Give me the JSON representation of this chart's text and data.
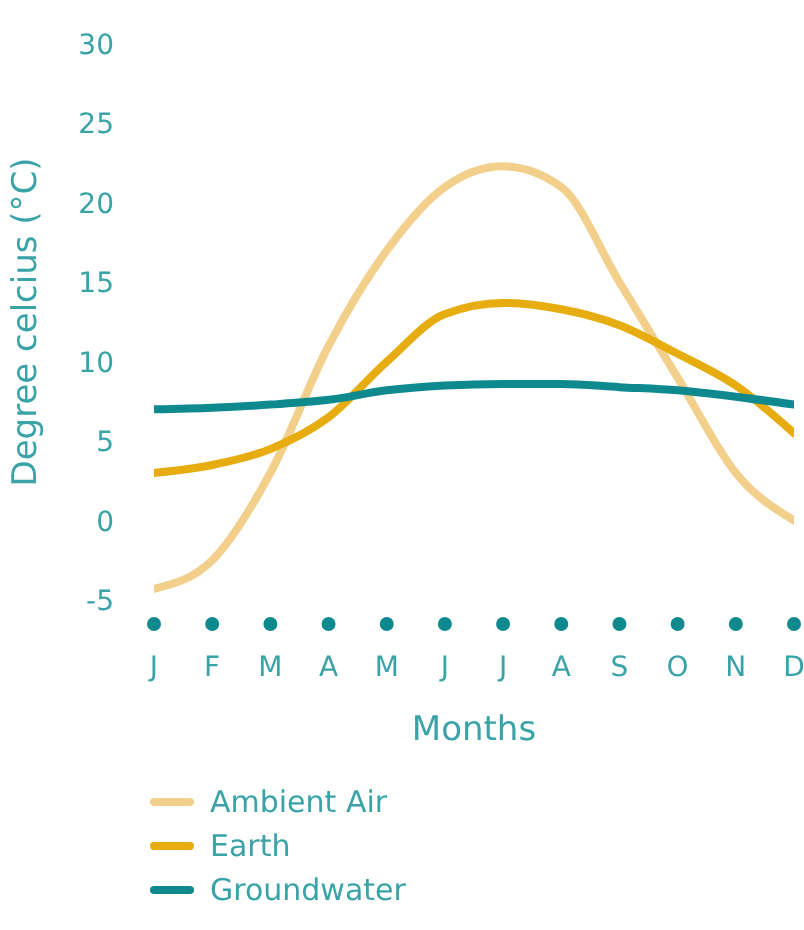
{
  "chart_data": {
    "type": "line",
    "xlabel": "Months",
    "ylabel": "Degree celcius (°C)",
    "categories": [
      "J",
      "F",
      "M",
      "A",
      "M",
      "J",
      "J",
      "A",
      "S",
      "O",
      "N",
      "D"
    ],
    "series": [
      {
        "name": "Ambient Air",
        "color": "#f2cf8a",
        "values": [
          -4.3,
          -2.5,
          3,
          11,
          17,
          21,
          22.3,
          21,
          15,
          9,
          3,
          0
        ]
      },
      {
        "name": "Earth",
        "color": "#e6ac10",
        "values": [
          3,
          3.5,
          4.5,
          6.5,
          10,
          13,
          13.7,
          13.3,
          12.3,
          10.5,
          8.5,
          5.5
        ]
      },
      {
        "name": "Groundwater",
        "color": "#0e8a8f",
        "values": [
          7,
          7.1,
          7.3,
          7.6,
          8.2,
          8.5,
          8.6,
          8.6,
          8.4,
          8.2,
          7.8,
          7.3
        ]
      }
    ],
    "ylim": [
      -5,
      30
    ],
    "yticks": [
      -5,
      0,
      5,
      10,
      15,
      20,
      25,
      30
    ],
    "grid": false,
    "legend": "bottom",
    "marker": "none",
    "line_style": "solid"
  }
}
